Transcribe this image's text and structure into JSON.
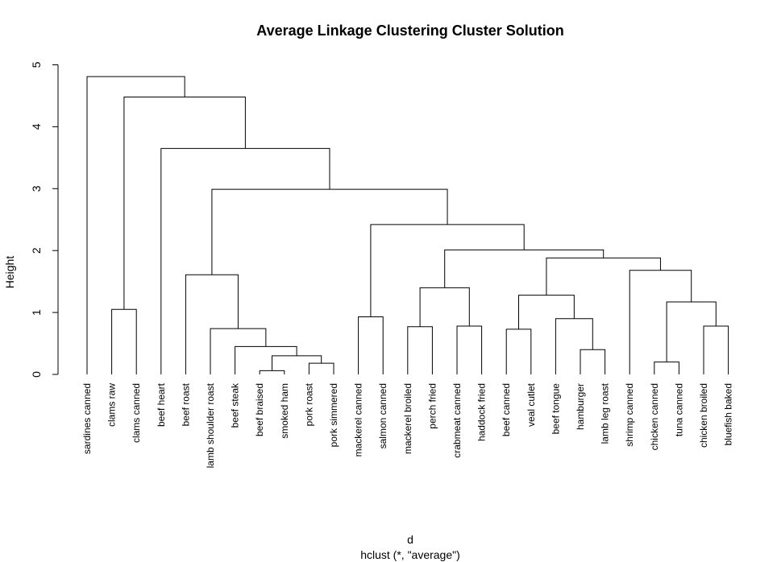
{
  "chart_data": {
    "type": "dendrogram",
    "title": "Average Linkage Clustering Cluster Solution",
    "xlabel": "d",
    "sublabel": "hclust (*, \"average\")",
    "ylabel": "Height",
    "ylim": [
      0,
      5
    ],
    "yticks": [
      "0",
      "1",
      "2",
      "3",
      "4",
      "5"
    ],
    "leaves": [
      "sardines canned",
      "clams raw",
      "clams canned",
      "beef heart",
      "beef roast",
      "lamb shoulder roast",
      "beef steak",
      "beef braised",
      "smoked ham",
      "pork roast",
      "pork simmered",
      "mackerel canned",
      "salmon canned",
      "mackerel broiled",
      "perch fried",
      "crabmeat canned",
      "haddock fried",
      "beef canned",
      "veal cutlet",
      "beef tongue",
      "hamburger",
      "lamb leg roast",
      "shrimp canned",
      "chicken canned",
      "tuna canned",
      "chicken broiled",
      "bluefish baked"
    ],
    "merges": [
      {
        "a": "L7",
        "b": "L8",
        "height": 0.06
      },
      {
        "a": "L9",
        "b": "L10",
        "height": 0.18
      },
      {
        "a": "L23",
        "b": "L24",
        "height": 0.2
      },
      {
        "a": "M1",
        "b": "M2",
        "height": 0.3
      },
      {
        "a": "L20",
        "b": "L21",
        "height": 0.4
      },
      {
        "a": "L6",
        "b": "M4",
        "height": 0.45
      },
      {
        "a": "L17",
        "b": "L18",
        "height": 0.73
      },
      {
        "a": "L5",
        "b": "M6",
        "height": 0.74
      },
      {
        "a": "L13",
        "b": "L14",
        "height": 0.77
      },
      {
        "a": "L15",
        "b": "L16",
        "height": 0.78
      },
      {
        "a": "L25",
        "b": "L26",
        "height": 0.78
      },
      {
        "a": "L19",
        "b": "M5",
        "height": 0.9
      },
      {
        "a": "L11",
        "b": "L12",
        "height": 0.93
      },
      {
        "a": "L1",
        "b": "L2",
        "height": 1.05
      },
      {
        "a": "M3",
        "b": "M11",
        "height": 1.17
      },
      {
        "a": "M7",
        "b": "M12",
        "height": 1.28
      },
      {
        "a": "M9",
        "b": "M10",
        "height": 1.4
      },
      {
        "a": "L4",
        "b": "M8",
        "height": 1.61
      },
      {
        "a": "L22",
        "b": "M15",
        "height": 1.68
      },
      {
        "a": "M16",
        "b": "M19",
        "height": 1.88
      },
      {
        "a": "M17",
        "b": "M20",
        "height": 2.01
      },
      {
        "a": "M13",
        "b": "M21",
        "height": 2.42
      },
      {
        "a": "M18",
        "b": "M22",
        "height": 2.99
      },
      {
        "a": "L3",
        "b": "M23",
        "height": 3.65
      },
      {
        "a": "M14",
        "b": "M24",
        "height": 4.48
      },
      {
        "a": "L0",
        "b": "M25",
        "height": 4.81
      }
    ]
  }
}
